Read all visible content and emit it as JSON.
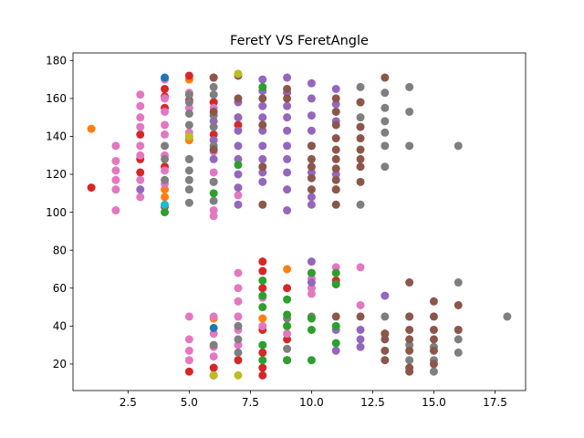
{
  "chart_data": {
    "type": "scatter",
    "title": "FeretY VS FeretAngle",
    "xlabel": "",
    "ylabel": "",
    "xlim": [
      0.25,
      18.75
    ],
    "ylim": [
      6,
      184
    ],
    "x_ticks": [
      2.5,
      5.0,
      7.5,
      10.0,
      12.5,
      15.0,
      17.5
    ],
    "x_tick_labels": [
      "2.5",
      "5.0",
      "7.5",
      "10.0",
      "12.5",
      "15.0",
      "17.5"
    ],
    "y_ticks": [
      20,
      40,
      60,
      80,
      100,
      120,
      140,
      160,
      180
    ],
    "y_tick_labels": [
      "20",
      "40",
      "60",
      "80",
      "100",
      "120",
      "140",
      "160",
      "180"
    ],
    "grid": false,
    "legend": "none",
    "palette": [
      "#1f77b4",
      "#ff7f0e",
      "#2ca02c",
      "#d62728",
      "#9467bd",
      "#8c564b",
      "#e377c2",
      "#7f7f7f",
      "#bcbd22",
      "#17becf"
    ],
    "series": [
      {
        "color": "#ff7f0e",
        "points": [
          [
            1,
            144
          ],
          [
            4,
            112
          ],
          [
            4,
            108
          ],
          [
            5,
            170
          ],
          [
            5,
            138
          ],
          [
            6,
            158
          ],
          [
            6,
            44
          ],
          [
            7,
            150
          ],
          [
            8,
            44
          ],
          [
            9,
            70
          ],
          [
            9,
            40
          ],
          [
            10,
            60
          ]
        ]
      },
      {
        "color": "#d62728",
        "points": [
          [
            1,
            113
          ],
          [
            3,
            141
          ],
          [
            3,
            128
          ],
          [
            3,
            121
          ],
          [
            4,
            165
          ],
          [
            4,
            161
          ],
          [
            4,
            155
          ],
          [
            4,
            124
          ],
          [
            4,
            103
          ],
          [
            5,
            172
          ],
          [
            5,
            159
          ],
          [
            5,
            16
          ],
          [
            6,
            171
          ],
          [
            6,
            158
          ],
          [
            6,
            141
          ],
          [
            6,
            18
          ],
          [
            6,
            14
          ],
          [
            7,
            146
          ],
          [
            7,
            22
          ],
          [
            8,
            74
          ],
          [
            8,
            69
          ],
          [
            8,
            60
          ],
          [
            8,
            38
          ],
          [
            8,
            26
          ],
          [
            8,
            18
          ],
          [
            8,
            14
          ],
          [
            9,
            60
          ],
          [
            9,
            33
          ],
          [
            9,
            22
          ],
          [
            11,
            64
          ]
        ]
      },
      {
        "color": "#e377c2",
        "points": [
          [
            2,
            135
          ],
          [
            2,
            127
          ],
          [
            2,
            122
          ],
          [
            2,
            117
          ],
          [
            2,
            112
          ],
          [
            2,
            101
          ],
          [
            3,
            162
          ],
          [
            3,
            156
          ],
          [
            3,
            150
          ],
          [
            3,
            145
          ],
          [
            3,
            135
          ],
          [
            3,
            130
          ],
          [
            3,
            117
          ],
          [
            3,
            108
          ],
          [
            4,
            170
          ],
          [
            4,
            160
          ],
          [
            4,
            153
          ],
          [
            4,
            146
          ],
          [
            4,
            141
          ],
          [
            4,
            130
          ],
          [
            4,
            122
          ],
          [
            4,
            115
          ],
          [
            5,
            163
          ],
          [
            5,
            155
          ],
          [
            5,
            142
          ],
          [
            5,
            128
          ],
          [
            5,
            45
          ],
          [
            5,
            33
          ],
          [
            5,
            27
          ],
          [
            5,
            22
          ],
          [
            6,
            155
          ],
          [
            6,
            132
          ],
          [
            6,
            121
          ],
          [
            6,
            101
          ],
          [
            6,
            98
          ],
          [
            6,
            45
          ],
          [
            6,
            36
          ],
          [
            6,
            29
          ],
          [
            6,
            24
          ],
          [
            7,
            109
          ],
          [
            7,
            68
          ],
          [
            7,
            60
          ],
          [
            7,
            53
          ],
          [
            7,
            45
          ],
          [
            7,
            38
          ],
          [
            7,
            30
          ],
          [
            8,
            55
          ],
          [
            8,
            40
          ],
          [
            9,
            36
          ],
          [
            10,
            68
          ],
          [
            10,
            65
          ],
          [
            10,
            60
          ],
          [
            10,
            57
          ],
          [
            11,
            71
          ],
          [
            12,
            71
          ],
          [
            12,
            51
          ]
        ]
      },
      {
        "color": "#9467bd",
        "points": [
          [
            3,
            112
          ],
          [
            6,
            148
          ],
          [
            6,
            138
          ],
          [
            6,
            128
          ],
          [
            6,
            116
          ],
          [
            7,
            158
          ],
          [
            7,
            150
          ],
          [
            7,
            143
          ],
          [
            7,
            135
          ],
          [
            7,
            128
          ],
          [
            7,
            120
          ],
          [
            7,
            113
          ],
          [
            7,
            104
          ],
          [
            8,
            170
          ],
          [
            8,
            164
          ],
          [
            8,
            156
          ],
          [
            8,
            150
          ],
          [
            8,
            143
          ],
          [
            8,
            135
          ],
          [
            8,
            128
          ],
          [
            8,
            121
          ],
          [
            8,
            116
          ],
          [
            9,
            171
          ],
          [
            9,
            163
          ],
          [
            9,
            156
          ],
          [
            9,
            150
          ],
          [
            9,
            143
          ],
          [
            9,
            135
          ],
          [
            9,
            128
          ],
          [
            9,
            121
          ],
          [
            9,
            112
          ],
          [
            9,
            101
          ],
          [
            10,
            168
          ],
          [
            10,
            160
          ],
          [
            10,
            151
          ],
          [
            10,
            143
          ],
          [
            10,
            135
          ],
          [
            10,
            121
          ],
          [
            10,
            108
          ],
          [
            10,
            104
          ],
          [
            10,
            74
          ],
          [
            10,
            63
          ],
          [
            11,
            165
          ],
          [
            11,
            157
          ],
          [
            11,
            148
          ],
          [
            11,
            120
          ],
          [
            11,
            112
          ],
          [
            11,
            38
          ],
          [
            11,
            27
          ],
          [
            12,
            38
          ],
          [
            12,
            33
          ],
          [
            12,
            29
          ],
          [
            13,
            56
          ]
        ]
      },
      {
        "color": "#7f7f7f",
        "points": [
          [
            4,
            135
          ],
          [
            4,
            128
          ],
          [
            4,
            117
          ],
          [
            5,
            162
          ],
          [
            5,
            158
          ],
          [
            5,
            152
          ],
          [
            5,
            146
          ],
          [
            5,
            140
          ],
          [
            5,
            128
          ],
          [
            5,
            122
          ],
          [
            5,
            117
          ],
          [
            5,
            112
          ],
          [
            5,
            105
          ],
          [
            6,
            166
          ],
          [
            6,
            162
          ],
          [
            6,
            151
          ],
          [
            6,
            145
          ],
          [
            6,
            135
          ],
          [
            6,
            116
          ],
          [
            6,
            106
          ],
          [
            6,
            30
          ],
          [
            7,
            26
          ],
          [
            7,
            33
          ],
          [
            7,
            40
          ],
          [
            9,
            44
          ],
          [
            9,
            28
          ],
          [
            10,
            45
          ],
          [
            12,
            166
          ],
          [
            12,
            158
          ],
          [
            12,
            150
          ],
          [
            12,
            104
          ],
          [
            13,
            163
          ],
          [
            13,
            155
          ],
          [
            13,
            148
          ],
          [
            13,
            142
          ],
          [
            13,
            135
          ],
          [
            13,
            124
          ],
          [
            13,
            45
          ],
          [
            13,
            36
          ],
          [
            14,
            166
          ],
          [
            14,
            153
          ],
          [
            14,
            135
          ],
          [
            14,
            45
          ],
          [
            14,
            30
          ],
          [
            14,
            22
          ],
          [
            15,
            29
          ],
          [
            15,
            22
          ],
          [
            15,
            16
          ],
          [
            16,
            135
          ],
          [
            16,
            63
          ],
          [
            16,
            38
          ],
          [
            16,
            33
          ],
          [
            16,
            26
          ],
          [
            18,
            45
          ]
        ]
      },
      {
        "color": "#8c564b",
        "points": [
          [
            6,
            171
          ],
          [
            6,
            153
          ],
          [
            6,
            133
          ],
          [
            7,
            172
          ],
          [
            7,
            160
          ],
          [
            8,
            160
          ],
          [
            8,
            146
          ],
          [
            8,
            124
          ],
          [
            8,
            104
          ],
          [
            9,
            165
          ],
          [
            9,
            160
          ],
          [
            10,
            135
          ],
          [
            10,
            128
          ],
          [
            10,
            124
          ],
          [
            10,
            118
          ],
          [
            10,
            112
          ],
          [
            11,
            160
          ],
          [
            11,
            153
          ],
          [
            11,
            146
          ],
          [
            11,
            139
          ],
          [
            11,
            133
          ],
          [
            11,
            128
          ],
          [
            11,
            123
          ],
          [
            11,
            117
          ],
          [
            11,
            112
          ],
          [
            11,
            104
          ],
          [
            11,
            45
          ],
          [
            12,
            158
          ],
          [
            12,
            145
          ],
          [
            12,
            139
          ],
          [
            12,
            133
          ],
          [
            12,
            128
          ],
          [
            12,
            124
          ],
          [
            12,
            116
          ],
          [
            12,
            45
          ],
          [
            13,
            171
          ],
          [
            13,
            36
          ],
          [
            13,
            33
          ],
          [
            13,
            27
          ],
          [
            13,
            22
          ],
          [
            14,
            63
          ],
          [
            14,
            45
          ],
          [
            14,
            38
          ],
          [
            14,
            33
          ],
          [
            14,
            27
          ],
          [
            14,
            18
          ],
          [
            14,
            16
          ],
          [
            15,
            53
          ],
          [
            15,
            45
          ],
          [
            15,
            38
          ],
          [
            15,
            33
          ],
          [
            15,
            27
          ],
          [
            15,
            20
          ],
          [
            16,
            51
          ],
          [
            16,
            38
          ]
        ]
      },
      {
        "color": "#2ca02c",
        "points": [
          [
            4,
            100
          ],
          [
            6,
            110
          ],
          [
            7,
            125
          ],
          [
            8,
            166
          ],
          [
            8,
            64
          ],
          [
            8,
            56
          ],
          [
            8,
            50
          ],
          [
            8,
            30
          ],
          [
            8,
            22
          ],
          [
            9,
            54
          ],
          [
            9,
            46
          ],
          [
            9,
            40
          ],
          [
            9,
            22
          ],
          [
            10,
            68
          ],
          [
            10,
            44
          ],
          [
            10,
            38
          ],
          [
            10,
            22
          ],
          [
            11,
            68
          ],
          [
            11,
            62
          ],
          [
            11,
            31
          ],
          [
            11,
            40
          ]
        ]
      },
      {
        "color": "#1f77b4",
        "points": [
          [
            4,
            171
          ],
          [
            6,
            39
          ]
        ]
      },
      {
        "color": "#bcbd22",
        "points": [
          [
            5,
            140
          ],
          [
            6,
            14
          ],
          [
            7,
            173
          ],
          [
            7,
            14
          ]
        ]
      },
      {
        "color": "#17becf",
        "points": [
          [
            4,
            104
          ]
        ]
      }
    ]
  }
}
